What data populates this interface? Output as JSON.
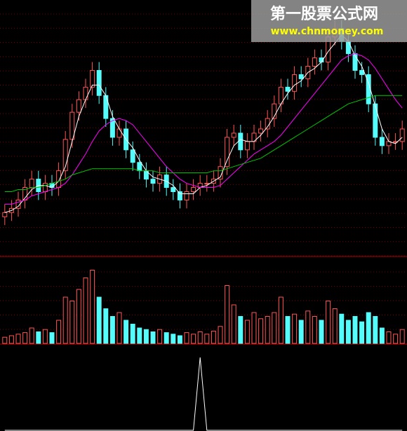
{
  "watermark": {
    "title": "第一股票公式网",
    "url": "www.chnmoney.com"
  },
  "chart_data": {
    "type": "candlestick",
    "up_color": "#ff5454",
    "down_color": "#54fcfc",
    "ylim": [
      0,
      12
    ],
    "open": [
      1.8,
      2.0,
      2.2,
      2.6,
      3.2,
      3.6,
      3.0,
      3.4,
      3.2,
      4.0,
      5.5,
      6.8,
      7.4,
      8.0,
      8.8,
      7.6,
      6.5,
      5.6,
      6.0,
      5.0,
      4.4,
      4.0,
      3.6,
      3.4,
      3.8,
      3.2,
      3.0,
      2.6,
      3.0,
      3.2,
      3.4,
      3.4,
      3.6,
      4.2,
      5.6,
      5.8,
      5.0,
      5.4,
      5.8,
      6.0,
      6.5,
      7.2,
      8.0,
      7.8,
      8.6,
      8.4,
      9.0,
      9.4,
      9.2,
      10.4,
      10.8,
      10.2,
      9.6,
      8.8,
      8.6,
      7.2,
      5.6,
      5.2,
      5.4,
      5.4
    ],
    "high": [
      2.4,
      2.6,
      3.0,
      3.6,
      4.0,
      4.0,
      3.8,
      3.8,
      4.4,
      5.9,
      7.2,
      7.8,
      8.4,
      9.2,
      9.2,
      8.0,
      6.9,
      6.4,
      6.4,
      5.4,
      4.8,
      4.4,
      4.0,
      4.2,
      4.2,
      3.6,
      3.4,
      3.4,
      3.6,
      3.8,
      3.8,
      4.0,
      4.6,
      6.0,
      6.2,
      6.2,
      5.8,
      6.2,
      6.4,
      6.9,
      7.6,
      8.4,
      8.4,
      9.0,
      9.0,
      9.4,
      9.8,
      9.8,
      10.8,
      11.2,
      11.2,
      10.6,
      10.0,
      9.2,
      9.0,
      7.6,
      6.0,
      5.8,
      5.8,
      6.4
    ],
    "low": [
      1.4,
      1.6,
      1.8,
      2.2,
      2.8,
      2.6,
      2.6,
      2.8,
      2.8,
      3.6,
      5.1,
      6.4,
      7.0,
      7.6,
      7.2,
      6.1,
      5.2,
      5.2,
      4.6,
      4.0,
      3.6,
      3.2,
      3.0,
      3.0,
      2.8,
      2.6,
      2.2,
      2.2,
      2.6,
      2.8,
      3.0,
      3.0,
      3.2,
      3.8,
      5.2,
      4.6,
      4.6,
      5.0,
      5.4,
      5.6,
      6.1,
      6.8,
      7.4,
      7.4,
      8.0,
      8.0,
      8.6,
      8.8,
      8.8,
      10.0,
      9.8,
      9.2,
      8.4,
      8.2,
      6.8,
      5.2,
      4.8,
      4.8,
      5.0,
      5.0
    ],
    "close": [
      2.0,
      2.2,
      2.6,
      3.2,
      3.6,
      3.0,
      3.4,
      3.2,
      4.0,
      5.5,
      6.8,
      7.4,
      8.0,
      8.8,
      7.6,
      6.5,
      5.6,
      6.0,
      5.0,
      4.4,
      4.0,
      3.6,
      3.4,
      3.8,
      3.2,
      3.0,
      2.6,
      3.0,
      3.2,
      3.4,
      3.4,
      3.6,
      4.2,
      5.6,
      5.8,
      5.0,
      5.4,
      5.8,
      6.0,
      6.5,
      7.2,
      8.0,
      7.8,
      8.6,
      8.4,
      9.0,
      9.4,
      9.2,
      10.4,
      10.8,
      10.2,
      9.6,
      8.8,
      8.6,
      7.2,
      5.6,
      5.2,
      5.4,
      5.4,
      6.0
    ],
    "lines": [
      {
        "color": "#ffffff",
        "values": [
          2.0,
          2.1,
          2.3,
          2.7,
          3.1,
          3.3,
          3.3,
          3.2,
          3.5,
          4.2,
          5.4,
          6.6,
          7.4,
          8.1,
          8.1,
          7.6,
          6.6,
          6.0,
          5.5,
          5.1,
          4.5,
          4.0,
          3.7,
          3.6,
          3.5,
          3.3,
          2.9,
          2.9,
          2.9,
          3.2,
          3.3,
          3.5,
          3.7,
          4.5,
          5.2,
          5.5,
          5.4,
          5.4,
          5.7,
          6.1,
          6.6,
          7.2,
          7.7,
          8.1,
          8.3,
          8.7,
          8.9,
          9.2,
          9.7,
          10.1,
          10.5,
          10.2,
          9.5,
          9.0,
          8.2,
          7.1,
          6.0,
          5.4,
          5.3,
          5.6
        ]
      },
      {
        "color": "#ff00ff",
        "values": [
          2.4,
          2.4,
          2.5,
          2.6,
          2.8,
          2.9,
          3.0,
          3.1,
          3.2,
          3.4,
          3.8,
          4.3,
          4.8,
          5.4,
          5.9,
          6.2,
          6.4,
          6.5,
          6.4,
          6.2,
          5.8,
          5.4,
          5.0,
          4.6,
          4.2,
          3.9,
          3.6,
          3.4,
          3.3,
          3.2,
          3.2,
          3.2,
          3.3,
          3.6,
          3.9,
          4.2,
          4.5,
          4.8,
          5.0,
          5.2,
          5.4,
          5.7,
          6.1,
          6.5,
          6.9,
          7.3,
          7.7,
          8.1,
          8.5,
          8.9,
          9.3,
          9.5,
          9.6,
          9.5,
          9.3,
          8.9,
          8.4,
          7.9,
          7.4,
          7.0
        ]
      },
      {
        "color": "#00c800",
        "values": [
          3.0,
          3.0,
          3.1,
          3.1,
          3.2,
          3.2,
          3.3,
          3.4,
          3.5,
          3.6,
          3.8,
          3.9,
          4.0,
          4.1,
          4.1,
          4.1,
          4.1,
          4.1,
          4.1,
          4.1,
          4.0,
          4.0,
          4.0,
          3.9,
          3.9,
          3.9,
          3.9,
          3.9,
          3.9,
          3.9,
          3.9,
          4.0,
          4.0,
          4.1,
          4.2,
          4.3,
          4.4,
          4.5,
          4.6,
          4.8,
          5.0,
          5.2,
          5.4,
          5.6,
          5.8,
          6.0,
          6.2,
          6.4,
          6.6,
          6.8,
          7.0,
          7.2,
          7.3,
          7.4,
          7.5,
          7.6,
          7.6,
          7.6,
          7.6,
          7.6
        ]
      }
    ],
    "volume": [
      8,
      10,
      12,
      14,
      20,
      15,
      18,
      14,
      30,
      60,
      55,
      70,
      85,
      95,
      60,
      45,
      35,
      40,
      30,
      25,
      20,
      18,
      15,
      18,
      14,
      12,
      10,
      14,
      12,
      15,
      12,
      16,
      22,
      75,
      50,
      35,
      30,
      40,
      32,
      35,
      40,
      60,
      35,
      38,
      30,
      42,
      35,
      30,
      55,
      45,
      38,
      30,
      35,
      28,
      40,
      35,
      20,
      15,
      12,
      18
    ],
    "volume_ylim": [
      0,
      100
    ],
    "signal": [
      0,
      0,
      0,
      0,
      0,
      0,
      0,
      0,
      0,
      0,
      0,
      0,
      0,
      0,
      0,
      0,
      0,
      0,
      0,
      0,
      0,
      0,
      0,
      0,
      0,
      0,
      0,
      0,
      0,
      1,
      0,
      0,
      0,
      0,
      0,
      0,
      0,
      0,
      0,
      0,
      0,
      0,
      0,
      0,
      0,
      0,
      0,
      0,
      0,
      0,
      0,
      0,
      0,
      0,
      0,
      0,
      0,
      0,
      0,
      0
    ],
    "signal_ylim": [
      0,
      1
    ]
  }
}
